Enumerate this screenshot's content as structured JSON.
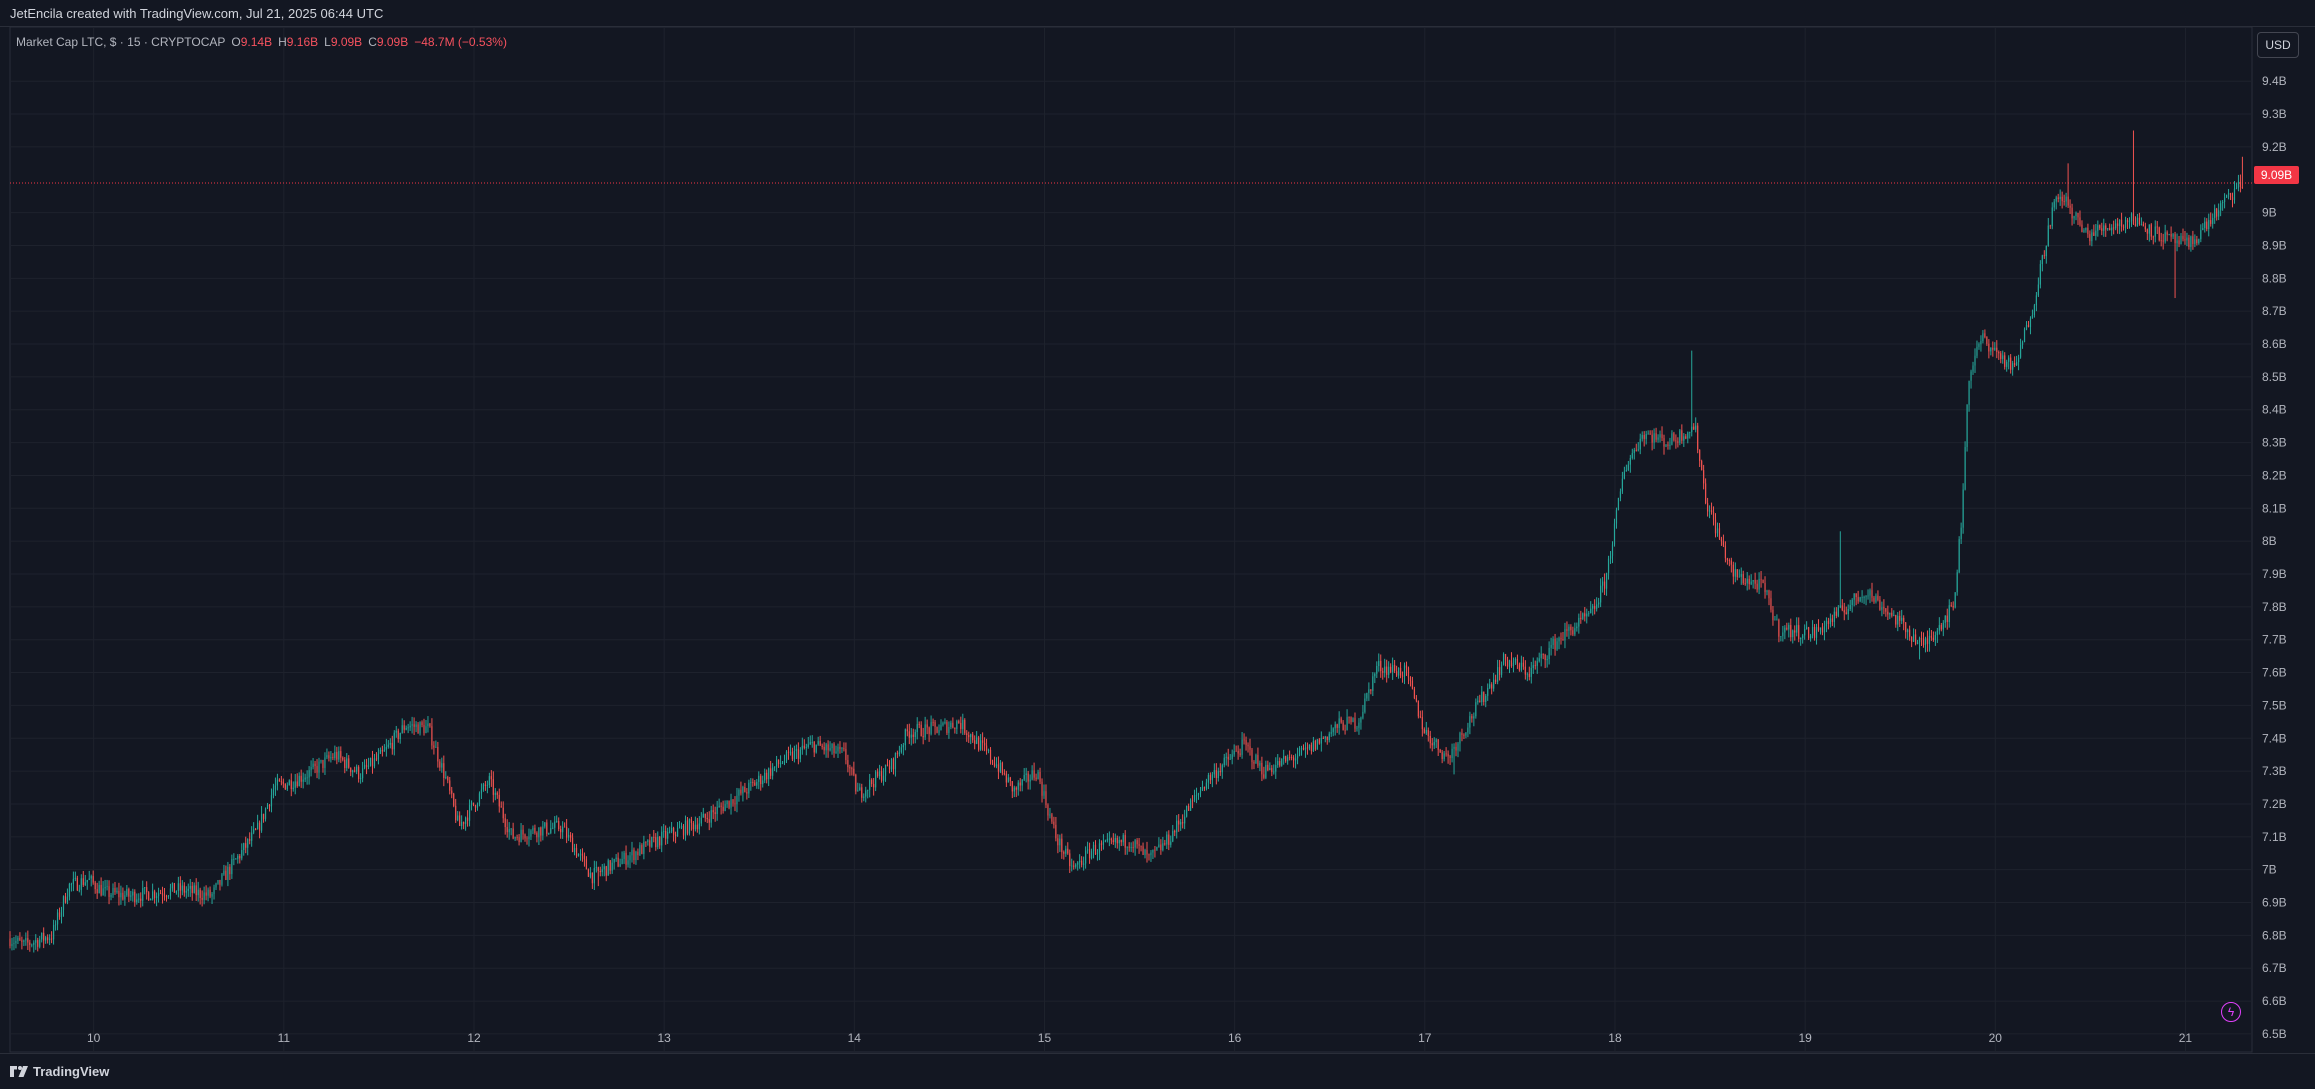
{
  "header": {
    "credit": "JetEncila created with TradingView.com, Jul 21, 2025 06:44 UTC"
  },
  "legend": {
    "symbol": "Market Cap LTC, $ · 15 · CRYPTOCAP",
    "open_label": "O",
    "open": "9.14B",
    "high_label": "H",
    "high": "9.16B",
    "low_label": "L",
    "low": "9.09B",
    "close_label": "C",
    "close": "9.09B",
    "change": "−48.7M (−0.53%)"
  },
  "currency_button": "USD",
  "last_price_label": "9.09B",
  "footer": {
    "brand": "TradingView"
  },
  "colors": {
    "background": "#131722",
    "up": "#26a69a",
    "down": "#ef5350",
    "grid": "#1e222d",
    "last_price": "#f23645"
  },
  "chart_data": {
    "type": "candlestick",
    "interval": "15",
    "x_unit": "day (July 2025)",
    "y_unit": "USD (billions)",
    "xlim": [
      9.56,
      21.35
    ],
    "ylim": [
      6.445,
      9.565
    ],
    "y_ticks": [
      {
        "v": 9.4,
        "label": "9.4B"
      },
      {
        "v": 9.3,
        "label": "9.3B"
      },
      {
        "v": 9.2,
        "label": "9.2B"
      },
      {
        "v": 9.0,
        "label": "9B"
      },
      {
        "v": 8.9,
        "label": "8.9B"
      },
      {
        "v": 8.8,
        "label": "8.8B"
      },
      {
        "v": 8.7,
        "label": "8.7B"
      },
      {
        "v": 8.6,
        "label": "8.6B"
      },
      {
        "v": 8.5,
        "label": "8.5B"
      },
      {
        "v": 8.4,
        "label": "8.4B"
      },
      {
        "v": 8.3,
        "label": "8.3B"
      },
      {
        "v": 8.2,
        "label": "8.2B"
      },
      {
        "v": 8.1,
        "label": "8.1B"
      },
      {
        "v": 8.0,
        "label": "8B"
      },
      {
        "v": 7.9,
        "label": "7.9B"
      },
      {
        "v": 7.8,
        "label": "7.8B"
      },
      {
        "v": 7.7,
        "label": "7.7B"
      },
      {
        "v": 7.6,
        "label": "7.6B"
      },
      {
        "v": 7.5,
        "label": "7.5B"
      },
      {
        "v": 7.4,
        "label": "7.4B"
      },
      {
        "v": 7.3,
        "label": "7.3B"
      },
      {
        "v": 7.2,
        "label": "7.2B"
      },
      {
        "v": 7.1,
        "label": "7.1B"
      },
      {
        "v": 7.0,
        "label": "7B"
      },
      {
        "v": 6.9,
        "label": "6.9B"
      },
      {
        "v": 6.8,
        "label": "6.8B"
      },
      {
        "v": 6.7,
        "label": "6.7B"
      },
      {
        "v": 6.6,
        "label": "6.6B"
      },
      {
        "v": 6.5,
        "label": "6.5B"
      }
    ],
    "x_ticks": [
      {
        "v": 10,
        "label": "10"
      },
      {
        "v": 11,
        "label": "11"
      },
      {
        "v": 12,
        "label": "12"
      },
      {
        "v": 13,
        "label": "13"
      },
      {
        "v": 14,
        "label": "14"
      },
      {
        "v": 15,
        "label": "15"
      },
      {
        "v": 16,
        "label": "16"
      },
      {
        "v": 17,
        "label": "17"
      },
      {
        "v": 18,
        "label": "18"
      },
      {
        "v": 19,
        "label": "19"
      },
      {
        "v": 20,
        "label": "20"
      },
      {
        "v": 21,
        "label": "21"
      }
    ],
    "last_price": 9.09,
    "price_path": [
      [
        9.56,
        6.79
      ],
      [
        9.63,
        6.77
      ],
      [
        9.78,
        6.8
      ],
      [
        9.87,
        6.95
      ],
      [
        9.97,
        6.97
      ],
      [
        10.06,
        6.93
      ],
      [
        10.19,
        6.92
      ],
      [
        10.45,
        6.94
      ],
      [
        10.62,
        6.92
      ],
      [
        10.7,
        6.99
      ],
      [
        10.86,
        7.12
      ],
      [
        10.95,
        7.25
      ],
      [
        11.05,
        7.27
      ],
      [
        11.15,
        7.3
      ],
      [
        11.27,
        7.35
      ],
      [
        11.4,
        7.29
      ],
      [
        11.52,
        7.35
      ],
      [
        11.64,
        7.44
      ],
      [
        11.76,
        7.43
      ],
      [
        11.85,
        7.28
      ],
      [
        11.92,
        7.13
      ],
      [
        12.08,
        7.27
      ],
      [
        12.2,
        7.1
      ],
      [
        12.32,
        7.12
      ],
      [
        12.46,
        7.13
      ],
      [
        12.62,
        6.98
      ],
      [
        12.78,
        7.03
      ],
      [
        13.0,
        7.1
      ],
      [
        13.2,
        7.15
      ],
      [
        13.45,
        7.25
      ],
      [
        13.62,
        7.33
      ],
      [
        13.78,
        7.38
      ],
      [
        13.95,
        7.35
      ],
      [
        14.02,
        7.23
      ],
      [
        14.2,
        7.32
      ],
      [
        14.28,
        7.42
      ],
      [
        14.45,
        7.43
      ],
      [
        14.55,
        7.45
      ],
      [
        14.75,
        7.32
      ],
      [
        14.84,
        7.24
      ],
      [
        14.96,
        7.3
      ],
      [
        15.06,
        7.1
      ],
      [
        15.15,
        7.0
      ],
      [
        15.25,
        7.06
      ],
      [
        15.45,
        7.09
      ],
      [
        15.55,
        7.03
      ],
      [
        15.65,
        7.09
      ],
      [
        15.85,
        7.27
      ],
      [
        16.05,
        7.38
      ],
      [
        16.15,
        7.3
      ],
      [
        16.38,
        7.36
      ],
      [
        16.55,
        7.44
      ],
      [
        16.65,
        7.45
      ],
      [
        16.75,
        7.62
      ],
      [
        16.9,
        7.6
      ],
      [
        17.0,
        7.42
      ],
      [
        17.12,
        7.34
      ],
      [
        17.3,
        7.52
      ],
      [
        17.42,
        7.64
      ],
      [
        17.55,
        7.6
      ],
      [
        17.7,
        7.7
      ],
      [
        17.88,
        7.78
      ],
      [
        17.95,
        7.88
      ],
      [
        18.05,
        8.22
      ],
      [
        18.15,
        8.33
      ],
      [
        18.28,
        8.3
      ],
      [
        18.42,
        8.35
      ],
      [
        18.48,
        8.12
      ],
      [
        18.62,
        7.9
      ],
      [
        18.78,
        7.86
      ],
      [
        18.86,
        7.73
      ],
      [
        19.05,
        7.72
      ],
      [
        19.22,
        7.8
      ],
      [
        19.32,
        7.85
      ],
      [
        19.5,
        7.75
      ],
      [
        19.62,
        7.68
      ],
      [
        19.78,
        7.8
      ],
      [
        19.82,
        8.05
      ],
      [
        19.86,
        8.5
      ],
      [
        19.93,
        8.62
      ],
      [
        20.1,
        8.52
      ],
      [
        20.2,
        8.72
      ],
      [
        20.3,
        9.01
      ],
      [
        20.35,
        9.05
      ],
      [
        20.48,
        8.93
      ],
      [
        20.6,
        8.96
      ],
      [
        20.73,
        8.98
      ],
      [
        20.9,
        8.92
      ],
      [
        21.02,
        8.9
      ],
      [
        21.22,
        9.04
      ],
      [
        21.3,
        9.09
      ]
    ],
    "spikes": [
      {
        "x": 18.4,
        "high": 8.58
      },
      {
        "x": 19.18,
        "high": 8.03
      },
      {
        "x": 20.73,
        "high": 9.25
      },
      {
        "x": 20.38,
        "high": 9.15
      },
      {
        "x": 21.3,
        "high": 9.17
      }
    ],
    "dips": [
      {
        "x": 20.95,
        "low": 8.74
      },
      {
        "x": 19.6,
        "low": 7.64
      },
      {
        "x": 17.15,
        "low": 7.29
      },
      {
        "x": 12.65,
        "low": 6.95
      }
    ]
  }
}
